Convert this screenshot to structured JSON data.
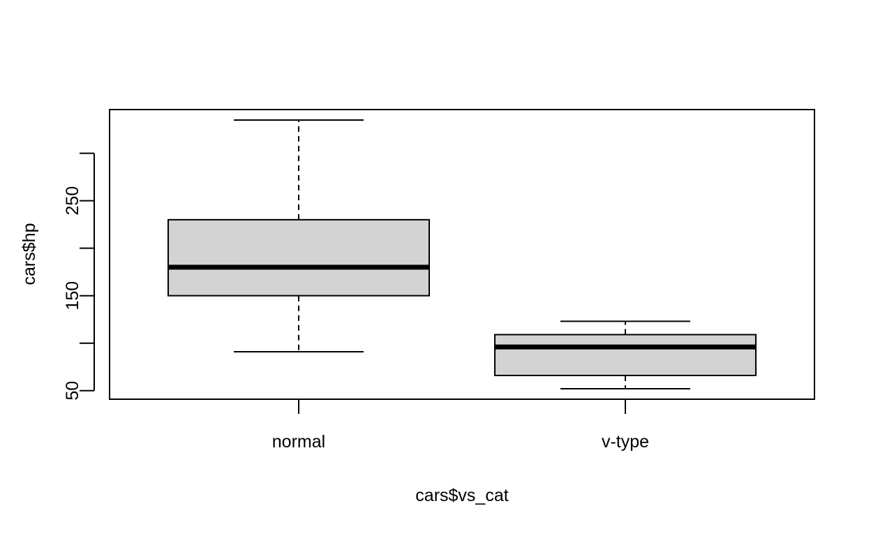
{
  "chart_data": {
    "type": "boxplot",
    "xlabel": "cars$vs_cat",
    "ylabel": "cars$hp",
    "categories": [
      "normal",
      "v-type"
    ],
    "yticks": [
      50,
      100,
      150,
      200,
      250,
      300
    ],
    "yticks_labeled": [
      "50",
      "150",
      "250"
    ],
    "ylim": [
      41,
      346
    ],
    "grid": false,
    "boxes": [
      {
        "category": "normal",
        "whisker_low": 91,
        "q1": 150,
        "median": 180,
        "q3": 230,
        "whisker_high": 335
      },
      {
        "category": "v-type",
        "whisker_low": 52,
        "q1": 66,
        "median": 96,
        "q3": 109,
        "whisker_high": 123
      }
    ],
    "colors": {
      "box_fill": "#d3d3d3",
      "stroke": "#000000"
    }
  }
}
